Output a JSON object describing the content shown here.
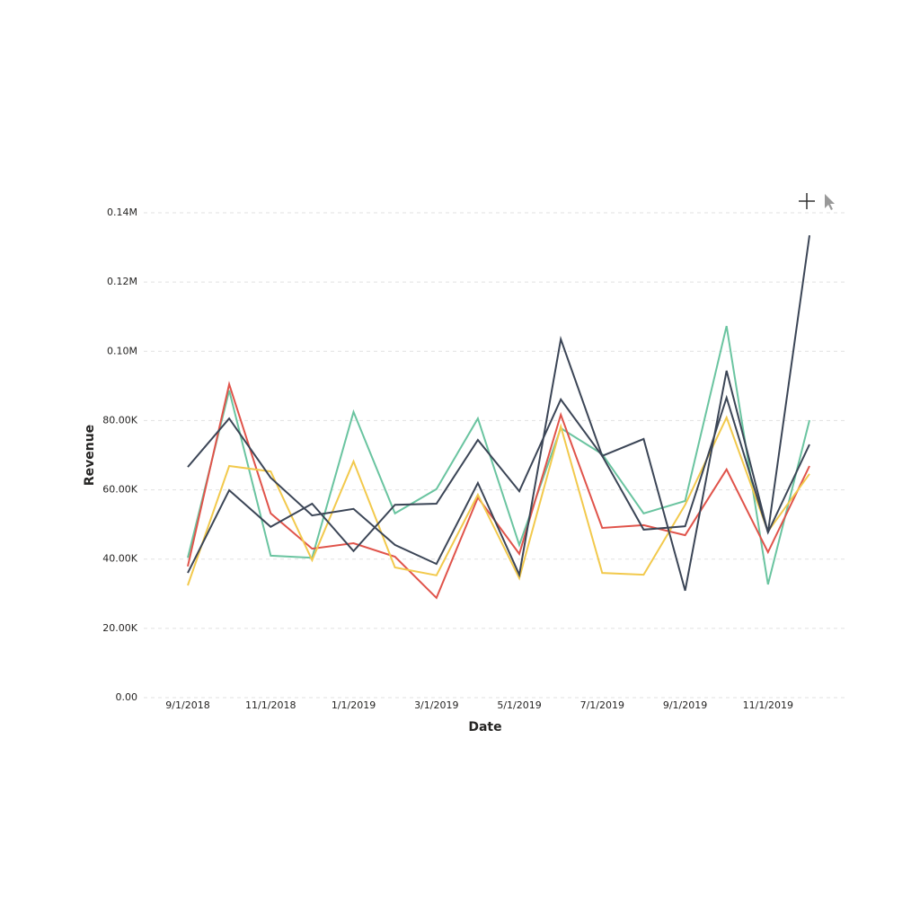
{
  "chart_data": {
    "type": "line",
    "x_label": "Date",
    "y_label": "Revenue",
    "categories": [
      "9/1/2018",
      null,
      "11/1/2018",
      null,
      "1/1/2019",
      null,
      "3/1/2019",
      null,
      "5/1/2019",
      null,
      "7/1/2019",
      null,
      "9/1/2019",
      null,
      "11/1/2019",
      null
    ],
    "ylim": [
      0,
      140000
    ],
    "yticks": [
      {
        "value": 0,
        "label": "0.00"
      },
      {
        "value": 20000,
        "label": "20.00K"
      },
      {
        "value": 40000,
        "label": "40.00K"
      },
      {
        "value": 60000,
        "label": "60.00K"
      },
      {
        "value": 80000,
        "label": "80.00K"
      },
      {
        "value": 100000,
        "label": "0.10M"
      },
      {
        "value": 120000,
        "label": "0.12M"
      },
      {
        "value": 140000,
        "label": "0.14M"
      }
    ],
    "grid": true,
    "series": [
      {
        "color": "#6ac4a0",
        "values": [
          40400,
          88700,
          41000,
          40400,
          82500,
          53200,
          60200,
          80600,
          44100,
          77800,
          70300,
          53200,
          56800,
          107300,
          32700,
          80100
        ]
      },
      {
        "color": "#e0534a",
        "values": [
          37900,
          90500,
          53200,
          43000,
          44600,
          40700,
          28800,
          57800,
          41500,
          81700,
          49000,
          49800,
          46900,
          65900,
          42000,
          66900
        ]
      },
      {
        "color": "#f2c94c",
        "values": [
          32400,
          66900,
          65300,
          39700,
          68200,
          37600,
          35300,
          58600,
          34500,
          78300,
          36000,
          35500,
          55700,
          80900,
          48000,
          64600
        ]
      },
      {
        "color": "#3b4556",
        "values": [
          66600,
          80600,
          63500,
          52600,
          54500,
          44100,
          38600,
          62000,
          35500,
          103500,
          69800,
          74700,
          30900,
          94400,
          47700,
          133500
        ]
      },
      {
        "color": "#3b4556",
        "values": [
          36000,
          59900,
          49300,
          56000,
          42300,
          55700,
          56000,
          74400,
          59600,
          86100,
          69800,
          48500,
          49500,
          86600,
          47700,
          73100
        ]
      }
    ]
  }
}
